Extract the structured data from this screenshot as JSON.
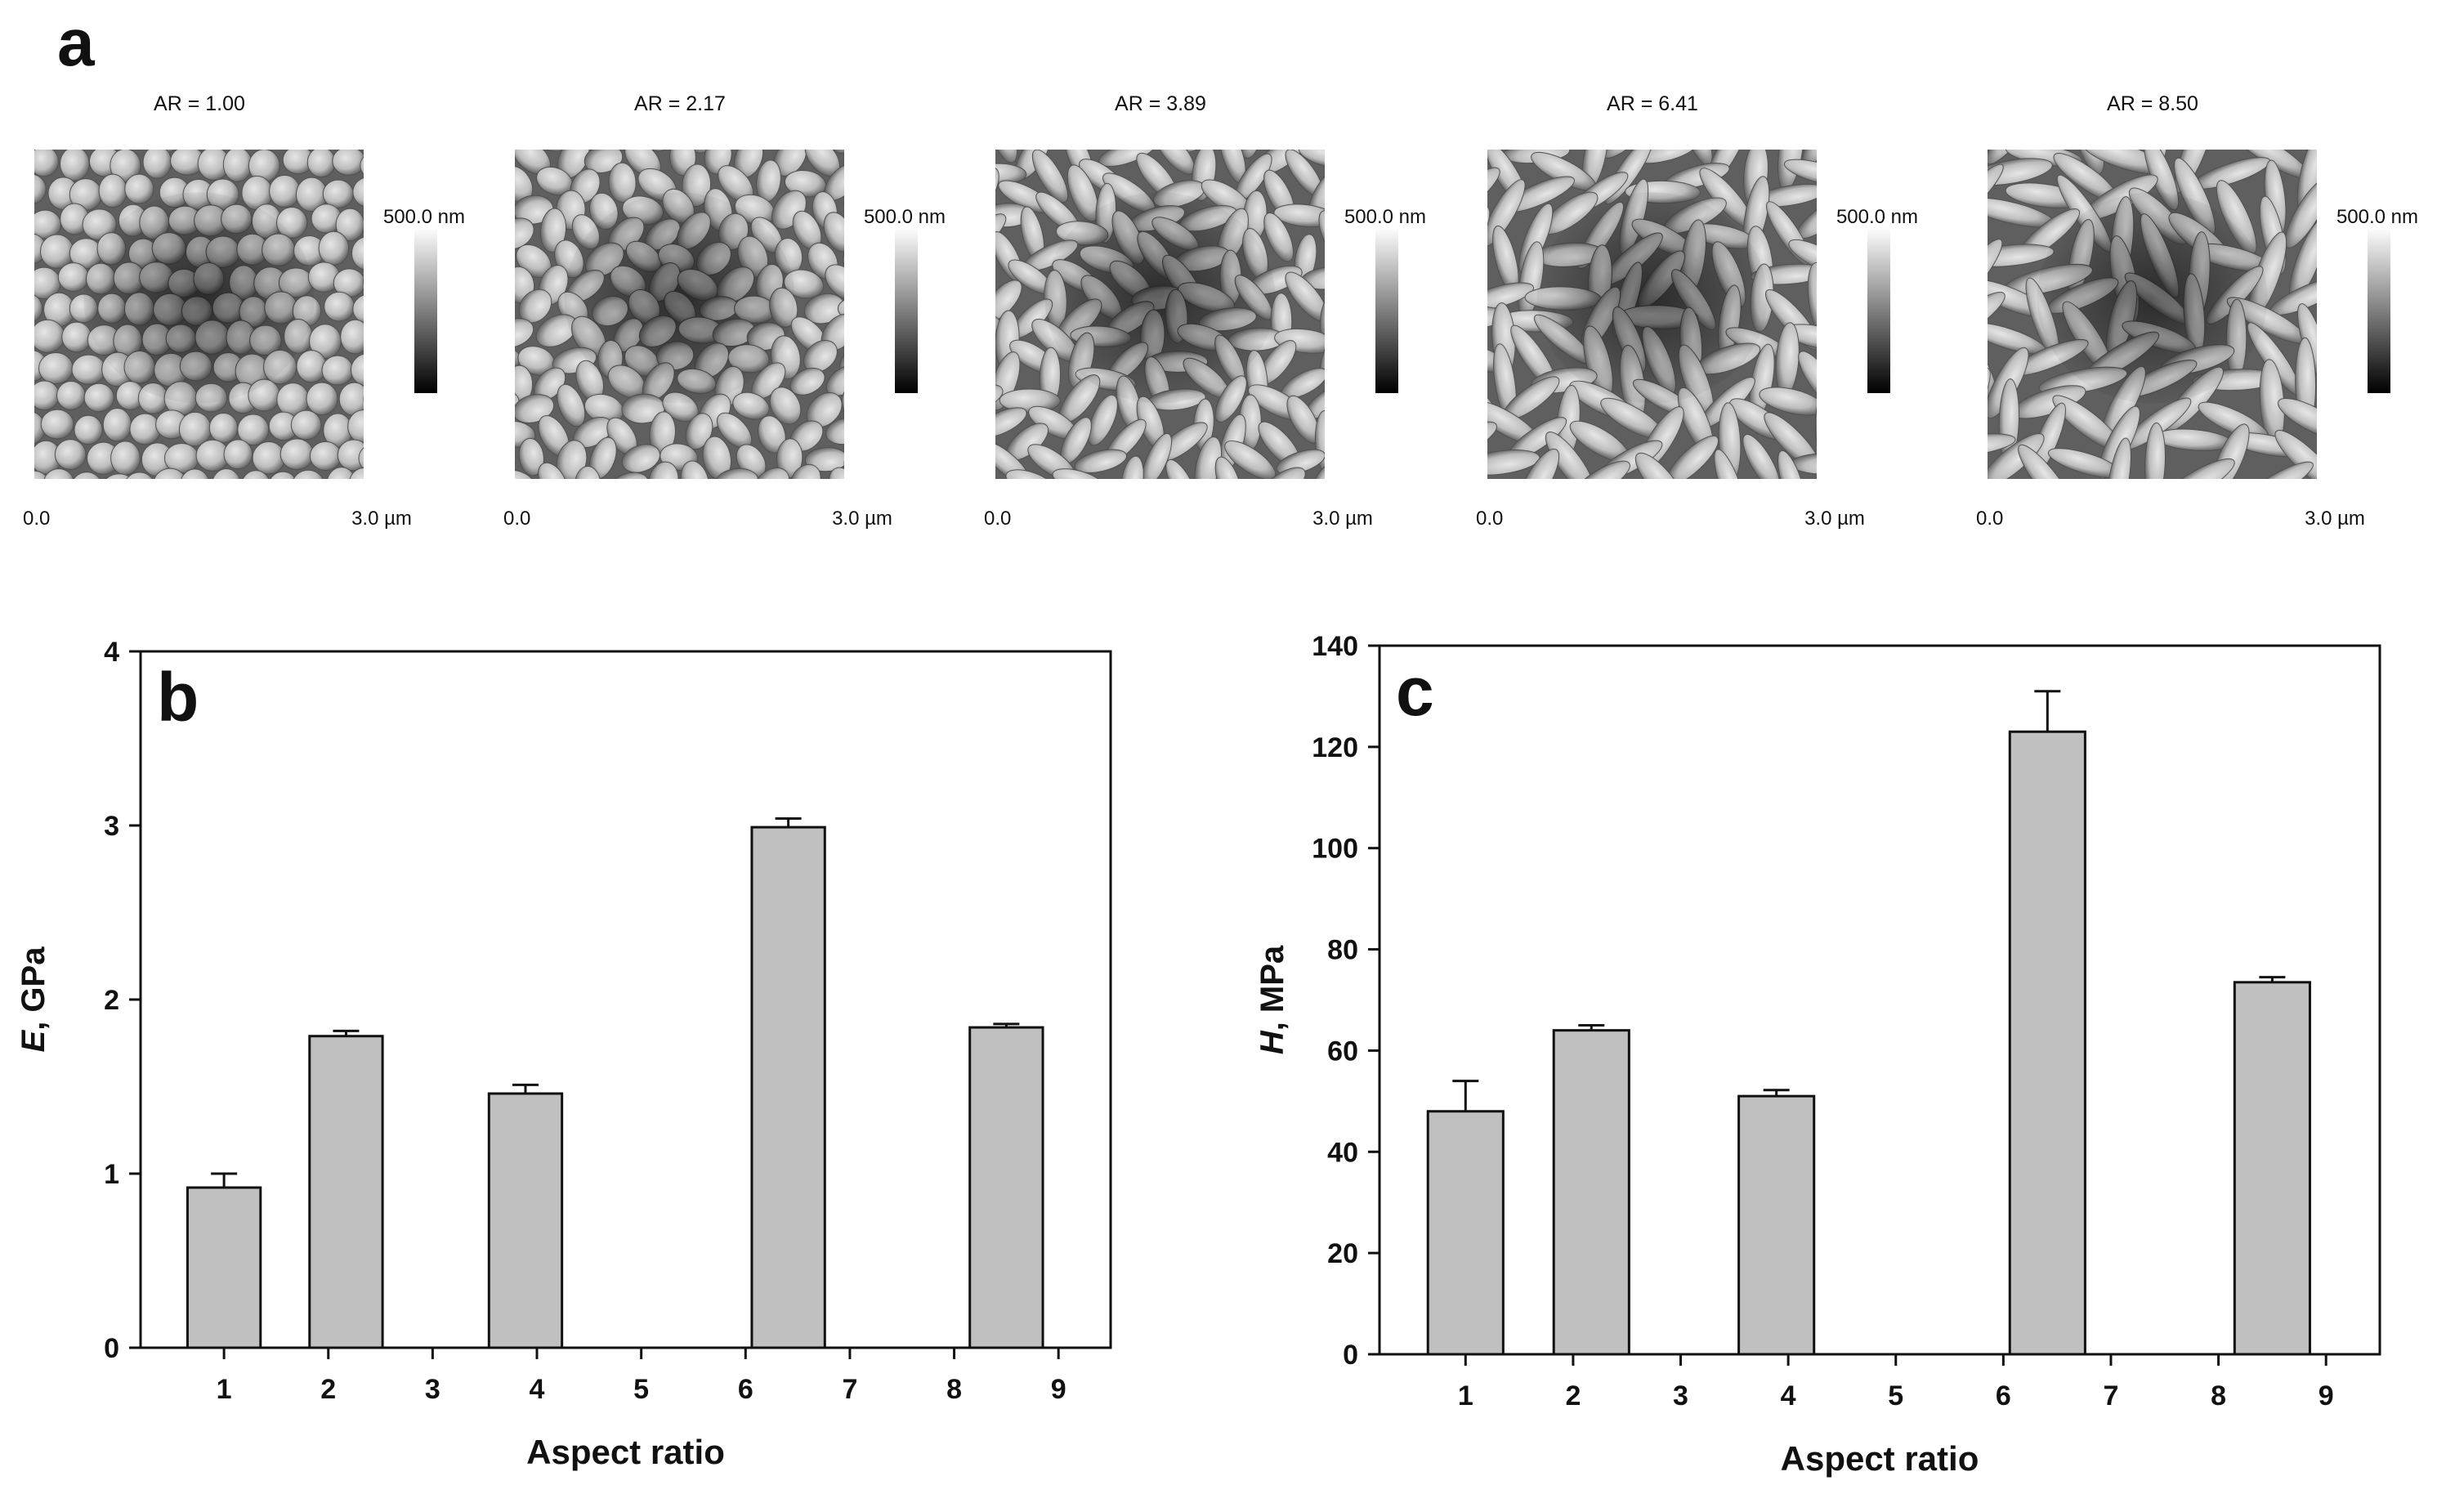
{
  "figure": {
    "panel_a_letter": "a",
    "afm_images": [
      {
        "title": "AR = 1.00",
        "scale_label": "500.0 nm",
        "x_start": "0.0",
        "x_end": "3.0 µm",
        "particle_aspect_ratio": 1.0
      },
      {
        "title": "AR = 2.17",
        "scale_label": "500.0 nm",
        "x_start": "0.0",
        "x_end": "3.0 µm",
        "particle_aspect_ratio": 2.17
      },
      {
        "title": "AR = 3.89",
        "scale_label": "500.0 nm",
        "x_start": "0.0",
        "x_end": "3.0 µm",
        "particle_aspect_ratio": 3.89
      },
      {
        "title": "AR = 6.41",
        "scale_label": "500.0 nm",
        "x_start": "0.0",
        "x_end": "3.0 µm",
        "particle_aspect_ratio": 6.41
      },
      {
        "title": "AR = 8.50",
        "scale_label": "500.0 nm",
        "x_start": "0.0",
        "x_end": "3.0 µm",
        "particle_aspect_ratio": 8.5
      }
    ]
  },
  "chart_data": [
    {
      "type": "bar",
      "panel_letter": "b",
      "title": "",
      "xlabel": "Aspect ratio",
      "ylabel_symbol": "E",
      "ylabel_unit": ", GPa",
      "x": [
        1.0,
        2.17,
        3.89,
        6.41,
        8.5
      ],
      "values": [
        0.92,
        1.79,
        1.46,
        2.99,
        1.84
      ],
      "errors": [
        0.08,
        0.03,
        0.05,
        0.05,
        0.02
      ],
      "xlim": [
        0.2,
        9.5
      ],
      "ylim": [
        0,
        4
      ],
      "xticks": [
        1,
        2,
        3,
        4,
        5,
        6,
        7,
        8,
        9
      ],
      "yticks": [
        0,
        1,
        2,
        3,
        4
      ],
      "bar_color": "#c0c0c0",
      "grid": false
    },
    {
      "type": "bar",
      "panel_letter": "c",
      "title": "",
      "xlabel": "Aspect ratio",
      "ylabel_symbol": "H",
      "ylabel_unit": ", MPa",
      "x": [
        1.0,
        2.17,
        3.89,
        6.41,
        8.5
      ],
      "values": [
        48,
        64,
        51,
        123,
        73.5
      ],
      "errors": [
        6,
        1,
        1.2,
        8,
        1
      ],
      "xlim": [
        0.2,
        9.5
      ],
      "ylim": [
        0,
        140
      ],
      "xticks": [
        1,
        2,
        3,
        4,
        5,
        6,
        7,
        8,
        9
      ],
      "yticks": [
        0,
        20,
        40,
        60,
        80,
        100,
        120,
        140
      ],
      "bar_color": "#c0c0c0",
      "grid": false
    }
  ]
}
